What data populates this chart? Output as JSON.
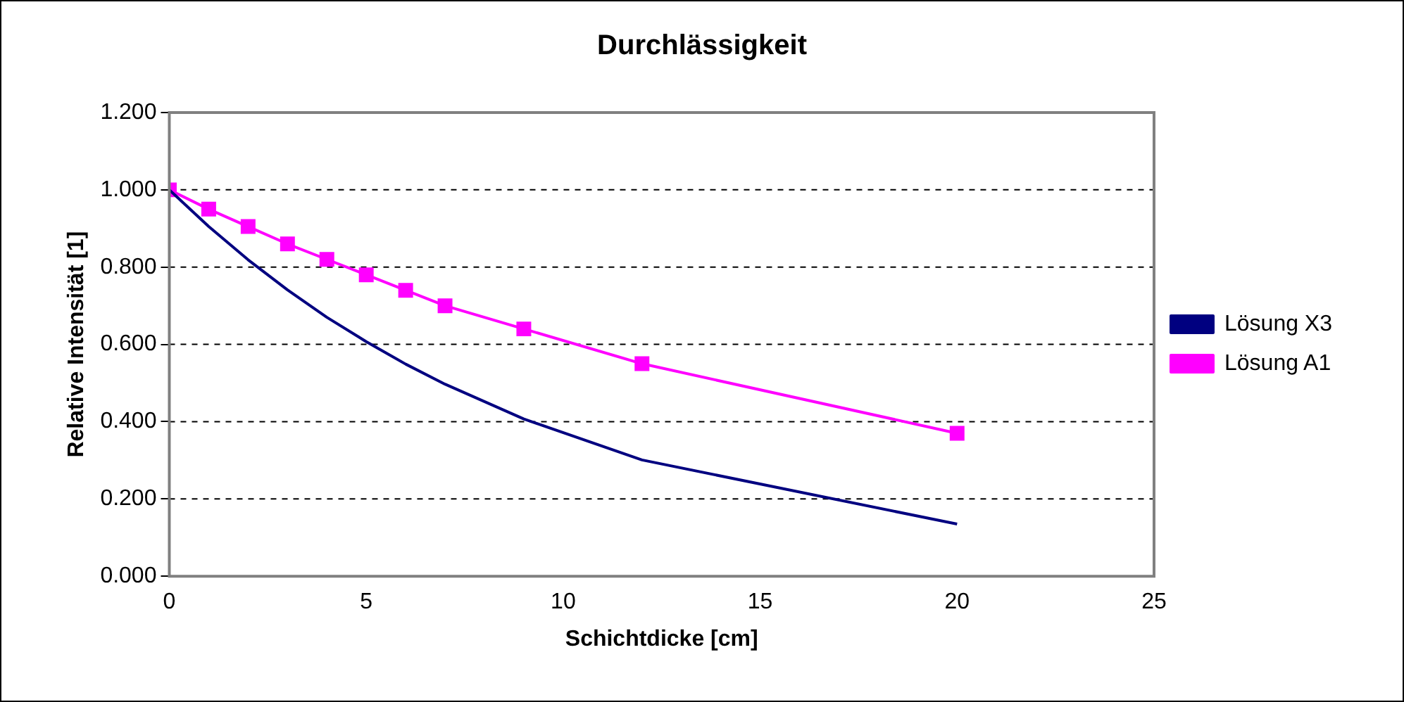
{
  "chart_data": {
    "type": "line",
    "title": "Durchlässigkeit",
    "xlabel": "Schichtdicke [cm]",
    "ylabel": "Relative Intensität [1]",
    "x": [
      0,
      1,
      2,
      3,
      4,
      5,
      6,
      7,
      9,
      12,
      20
    ],
    "series": [
      {
        "name": "Lösung X3",
        "color": "#000080",
        "marker": "none",
        "values": [
          1.0,
          0.905,
          0.819,
          0.741,
          0.67,
          0.607,
          0.549,
          0.497,
          0.407,
          0.301,
          0.135
        ]
      },
      {
        "name": "Lösung A1",
        "color": "#ff00ff",
        "marker": "square",
        "values": [
          1.0,
          0.95,
          0.905,
          0.86,
          0.82,
          0.78,
          0.74,
          0.7,
          0.64,
          0.55,
          0.37
        ]
      }
    ],
    "xlim": [
      0,
      25
    ],
    "xticks": [
      0,
      5,
      10,
      15,
      20,
      25
    ],
    "ylim": [
      0,
      1.2
    ],
    "yticks": [
      {
        "value": 0,
        "label": "0.000"
      },
      {
        "value": 0.2,
        "label": "0.200"
      },
      {
        "value": 0.4,
        "label": "0.400"
      },
      {
        "value": 0.6,
        "label": "0.600"
      },
      {
        "value": 0.8,
        "label": "0.800"
      },
      {
        "value": 1.0,
        "label": "1.000"
      },
      {
        "value": 1.2,
        "label": "1.200"
      }
    ],
    "grid": "y",
    "legend": "right"
  }
}
